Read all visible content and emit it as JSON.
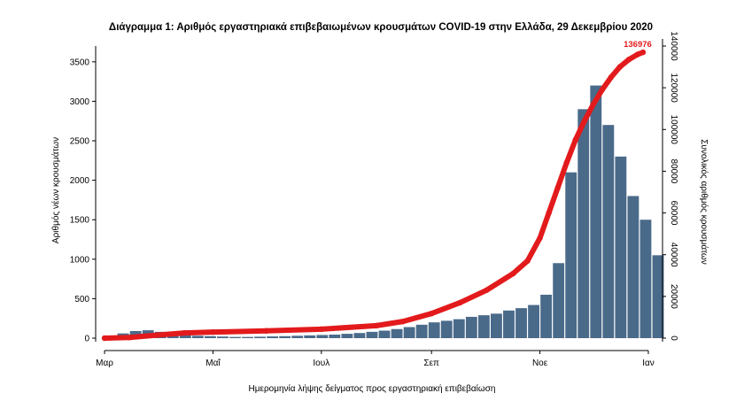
{
  "chart_data": {
    "type": "bar",
    "title": "Διάγραμμα 1: Αριθμός εργαστηριακά επιβεβαιωμένων κρουσμάτων COVID-19 στην Ελλάδα, 29 Δεκεμβρίου 2020",
    "xlabel": "Ημερομηνία λήψης δείγματος προς εργαστηριακή επιβεβαίωση",
    "ylabel": "Αριθμός νέων κρουσμάτων",
    "y2label": "Συνολικός αριθμός κρουσμάτων",
    "ylim": [
      0,
      3700
    ],
    "y2lim": [
      0,
      140000
    ],
    "yticks": [
      0,
      500,
      1000,
      1500,
      2000,
      2500,
      3000,
      3500
    ],
    "y2ticks": [
      0,
      20000,
      40000,
      60000,
      80000,
      100000,
      120000,
      140000
    ],
    "xticks": [
      {
        "label": "Μαρ",
        "day": 0
      },
      {
        "label": "Μαΐ",
        "day": 61
      },
      {
        "label": "Ιουλ",
        "day": 122
      },
      {
        "label": "Σεπ",
        "day": 184
      },
      {
        "label": "Νοε",
        "day": 245
      },
      {
        "label": "Ιαν",
        "day": 306
      }
    ],
    "x_range_days": [
      -5,
      310
    ],
    "bar_color": "#4a6a8a",
    "line_color": "#e31a1c",
    "bars_weekly": {
      "start_day": 0,
      "step_days": 7,
      "values": [
        30,
        60,
        90,
        100,
        80,
        60,
        40,
        30,
        25,
        20,
        15,
        15,
        18,
        22,
        25,
        30,
        35,
        40,
        45,
        55,
        65,
        80,
        95,
        115,
        140,
        170,
        200,
        220,
        240,
        270,
        290,
        310,
        350,
        380,
        420,
        550,
        950,
        2100,
        2900,
        3200,
        2700,
        2300,
        1800,
        1500,
        1050
      ]
    },
    "cumulative_series": {
      "name": "",
      "x_days": [
        0,
        14,
        30,
        45,
        61,
        91,
        122,
        153,
        168,
        184,
        200,
        215,
        230,
        238,
        245,
        250,
        255,
        260,
        265,
        270,
        275,
        280,
        285,
        290,
        295,
        300,
        303
      ],
      "y": [
        0,
        300,
        1500,
        2500,
        2900,
        3500,
        4300,
        6000,
        8000,
        11800,
        17000,
        23000,
        31000,
        37000,
        48000,
        60000,
        72000,
        84000,
        95000,
        104000,
        112000,
        119000,
        125000,
        130000,
        133500,
        136000,
        136976
      ]
    },
    "annotations": [
      {
        "text": "136976",
        "day": 303,
        "value": 136976
      }
    ]
  }
}
